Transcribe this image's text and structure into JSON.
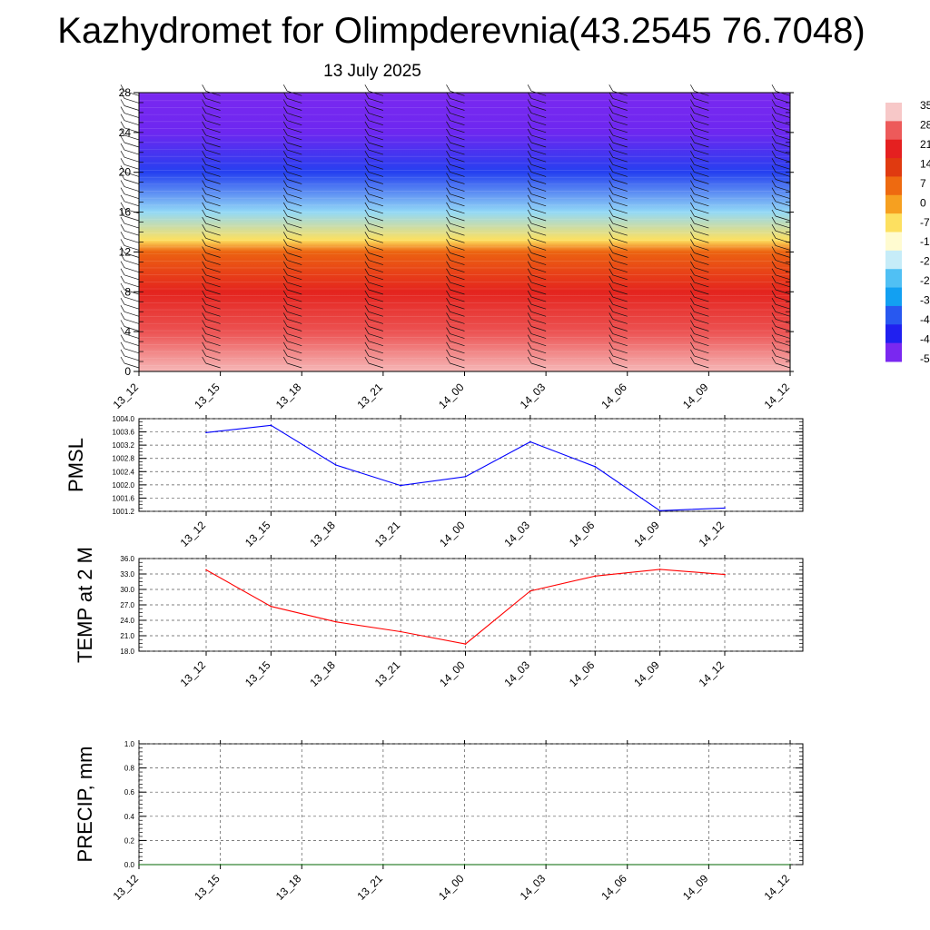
{
  "title": "Kazhydromet for Olimpderevnia(43.2545 76.7048)",
  "subtitle": "13 July 2025",
  "chart_data": [
    {
      "type": "heatmap",
      "x": [
        "13_12",
        "13_15",
        "13_18",
        "13_21",
        "14_00",
        "14_03",
        "14_06",
        "14_09",
        "14_12"
      ],
      "y_ticks": [
        "0",
        "4",
        "8",
        "12",
        "16",
        "20",
        "24",
        "28"
      ],
      "ylim": [
        0,
        28
      ],
      "colorbar_labels": [
        "35",
        "28",
        "21",
        "14",
        "7",
        "0",
        "-7",
        "-1",
        "-2",
        "-2",
        "-3",
        "-4",
        "-4",
        "-5"
      ],
      "colorbar_colors": [
        "#f7c8c8",
        "#ed5a5a",
        "#e52020",
        "#e03a10",
        "#ee6a10",
        "#f6a020",
        "#fde060",
        "#fffbd0",
        "#c6ecf8",
        "#50c0f4",
        "#12a0f2",
        "#2858f0",
        "#2020f0",
        "#7a28f0"
      ],
      "temperature_profile": [
        {
          "height": 0,
          "value": 34
        },
        {
          "height": 4,
          "value": 27
        },
        {
          "height": 8,
          "value": 20
        },
        {
          "height": 12,
          "value": 8
        },
        {
          "height": 13.2,
          "value": -7
        },
        {
          "height": 16,
          "value": -24
        },
        {
          "height": 20,
          "value": -45
        },
        {
          "height": 24,
          "value": -55
        },
        {
          "height": 28,
          "value": -58
        }
      ],
      "wind_barbs": true
    },
    {
      "type": "line",
      "ylabel": "PMSL",
      "x": [
        "13_12",
        "13_15",
        "13_18",
        "13_21",
        "14_00",
        "14_03",
        "14_06",
        "14_09",
        "14_12"
      ],
      "series": [
        {
          "values": [
            1003.58,
            1003.8,
            1002.6,
            1001.98,
            1002.25,
            1003.3,
            1002.55,
            1001.22,
            1001.3
          ],
          "color": "#0000ff"
        }
      ],
      "y_ticks": [
        "1004.0",
        "1003.6",
        "1003.2",
        "1002.8",
        "1002.4",
        "1002.0",
        "1001.6",
        "1001.2"
      ],
      "ylim": [
        1001.2,
        1004.0
      ],
      "grid": true
    },
    {
      "type": "line",
      "ylabel": "TEMP at 2 M",
      "x": [
        "13_12",
        "13_15",
        "13_18",
        "13_21",
        "14_00",
        "14_03",
        "14_06",
        "14_09",
        "14_12"
      ],
      "series": [
        {
          "values": [
            33.8,
            26.7,
            23.7,
            21.8,
            19.4,
            29.7,
            32.6,
            33.9,
            32.9
          ],
          "color": "#ff0000"
        }
      ],
      "y_ticks": [
        "36.0",
        "33.0",
        "30.0",
        "27.0",
        "24.0",
        "21.0",
        "18.0"
      ],
      "ylim": [
        18,
        36
      ],
      "grid": true
    },
    {
      "type": "line",
      "ylabel": "PRECIP, mm",
      "x": [
        "13_12",
        "13_15",
        "13_18",
        "13_21",
        "14_00",
        "14_03",
        "14_06",
        "14_09",
        "14_12"
      ],
      "series": [
        {
          "values": [
            0,
            0,
            0,
            0,
            0,
            0,
            0,
            0,
            0
          ],
          "color": "#006400"
        }
      ],
      "y_ticks": [
        "1.0",
        "0.8",
        "0.6",
        "0.4",
        "0.2",
        "0.0"
      ],
      "ylim": [
        0,
        1.0
      ],
      "grid": true
    }
  ]
}
